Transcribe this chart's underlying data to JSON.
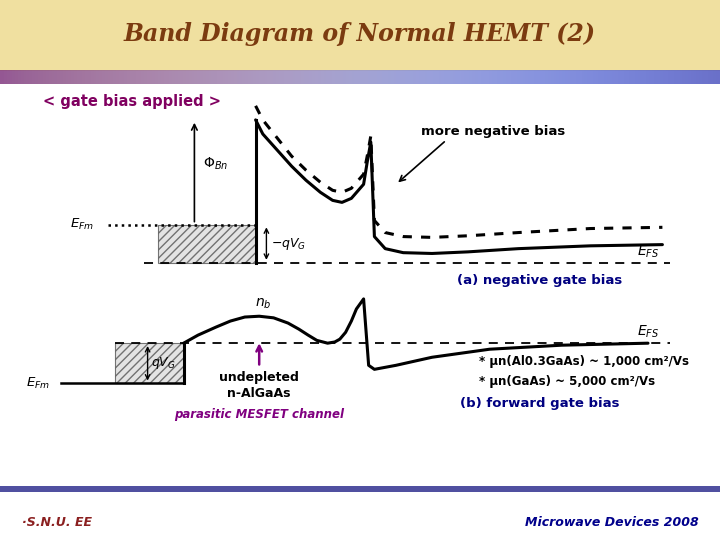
{
  "title": "Band Diagram of Normal HEMT (2)",
  "title_color": "#7B3B10",
  "title_bg_top": "#F5EAC0",
  "title_bg_bot": "#EDD890",
  "subtitle": "< gate bias applied >",
  "subtitle_color": "#800060",
  "bg_color": "#FFFFFF",
  "footer_left": "·S.N.U. EE",
  "footer_right": "Microwave Devices 2008",
  "footer_color_left": "#8B2020",
  "footer_color_right": "#00008B",
  "label_a": "(a) negative gate bias",
  "label_b": "(b) forward gate bias",
  "label_color": "#000080",
  "note_more_neg": "more negative bias",
  "note_undepleted": "undepleted",
  "note_nAlGaAs": "n-AlGaAs",
  "note_parasitic": "parasitic MESFET channel",
  "parasitic_color": "#800080",
  "mob1": "* μn(Al0.3GaAs) ~ 1,000 cm²/Vs",
  "mob2": "* μn(GaAs) ~ 5,000 cm²/Vs",
  "mob_color": "#000000",
  "separator_color": "#4040A0"
}
